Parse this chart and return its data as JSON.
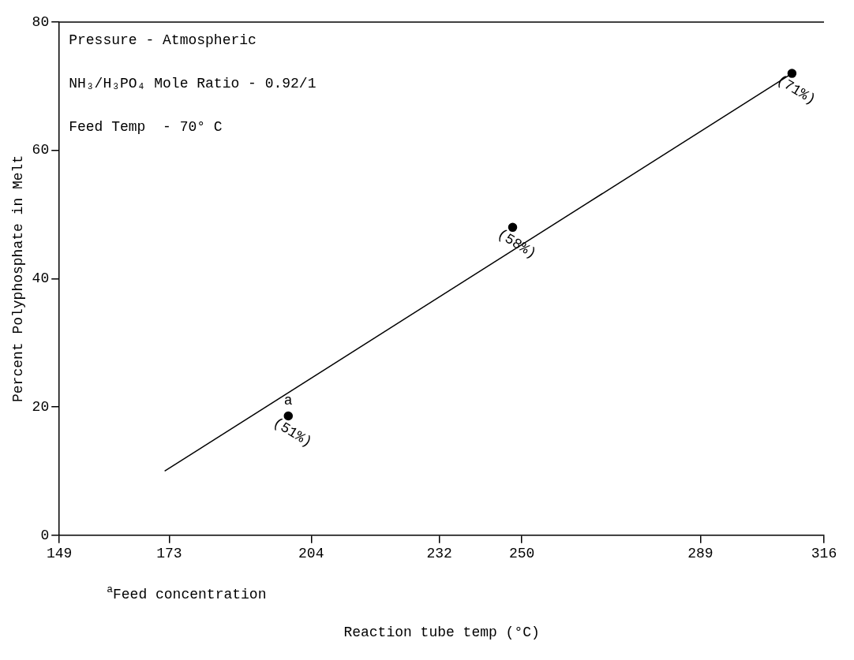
{
  "chart_data": {
    "type": "scatter",
    "xlabel": "Reaction tube temp (°C)",
    "ylabel": "Percent Polyphosphate in Melt",
    "xlim": [
      149,
      316
    ],
    "xticks": [
      149,
      173,
      204,
      232,
      250,
      289,
      316
    ],
    "ylim": [
      0,
      80
    ],
    "yticks": [
      0,
      20,
      40,
      60,
      80
    ],
    "grid": false,
    "legend": false,
    "marker": "circle",
    "series": [
      {
        "type": "line",
        "color": "#000000",
        "x": [
          172,
          309
        ],
        "values": [
          10,
          72
        ],
        "marker": "none",
        "line_style": "solid"
      },
      {
        "color": "#000000",
        "x": [
          199,
          248,
          309
        ],
        "values": [
          18.6,
          48,
          72
        ]
      }
    ],
    "annotations": [
      "Pressure - Atmospheric",
      "NH₃/H₃PO₄ Mole Ratio - 0.92/1",
      "Feed Temp  - 70° C",
      {
        "text": "a",
        "x": 199,
        "y": 18.6
      },
      {
        "text": "(51%)",
        "x": 199,
        "y": 18.6
      },
      {
        "text": "(58%)",
        "x": 248,
        "y": 48
      },
      {
        "text": "(71%)",
        "x": 309,
        "y": 72
      },
      "$^{a}$Feed concentration"
    ]
  }
}
